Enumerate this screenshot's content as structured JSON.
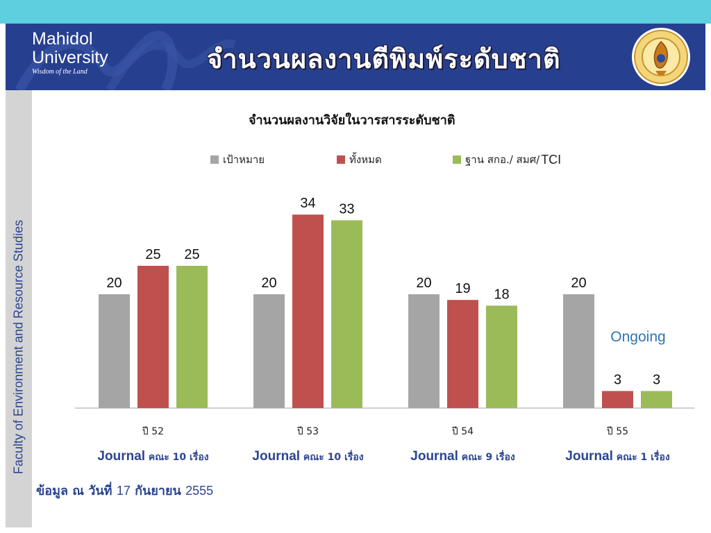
{
  "header": {
    "university_line1": "Mahidol",
    "university_line2": "University",
    "tagline": "Wisdom of the Land",
    "title": "จำนวนผลงานตีพิมพ์ระดับชาติ",
    "seal_icon": "mahidol-university-seal"
  },
  "sidebar": {
    "label": "Faculty of Environment and Resource Studies"
  },
  "colors": {
    "top_strip": "#5ecfdf",
    "header_bg": "#273f8f",
    "sidebar_bg": "#d4d4d4",
    "series_target": "#a5a5a5",
    "series_total": "#c0504d",
    "series_tci": "#9bbb59",
    "journal_text": "#2b4590",
    "ongoing_text": "#2e75b6"
  },
  "chart_data": {
    "type": "bar",
    "title": "จำนวนผลงานวิจัยในวารสารระดับชาติ",
    "categories": [
      "ปี 52",
      "ปี 53",
      "ปี 54",
      "ปี 55"
    ],
    "series": [
      {
        "name": "เป้าหมาย",
        "values": [
          20,
          20,
          20,
          20
        ],
        "color": "#a5a5a5"
      },
      {
        "name": "ทั้งหมด",
        "values": [
          25,
          34,
          19,
          3
        ],
        "color": "#c0504d"
      },
      {
        "name": "ฐาน สกอ./ สมศ/ TCI",
        "values": [
          25,
          33,
          18,
          3
        ],
        "color": "#9bbb59"
      }
    ],
    "ylim": [
      0,
      34
    ],
    "grid": false,
    "legend_position": "top",
    "annotation": "Ongoing",
    "journal_notes": [
      {
        "prefix": "Journal",
        "suffix": " คณะ 10 เรื่อง"
      },
      {
        "prefix": "Journal",
        "suffix": " คณะ 10 เรื่อง"
      },
      {
        "prefix": "Journal",
        "suffix": " คณะ 9 เรื่อง"
      },
      {
        "prefix": "Journal",
        "suffix": " คณะ 1 เรื่อง"
      }
    ]
  },
  "legend": {
    "target": "เป้าหมาย",
    "total": "ทั้งหมด",
    "tci_prefix": "ฐาน สกอ./ สมศ/",
    "tci_suffix": "TCI"
  },
  "footnote": {
    "prefix": "ข้อมูล ณ วันที่",
    "date": "17",
    "month": "กันยายน",
    "year": "2555"
  }
}
